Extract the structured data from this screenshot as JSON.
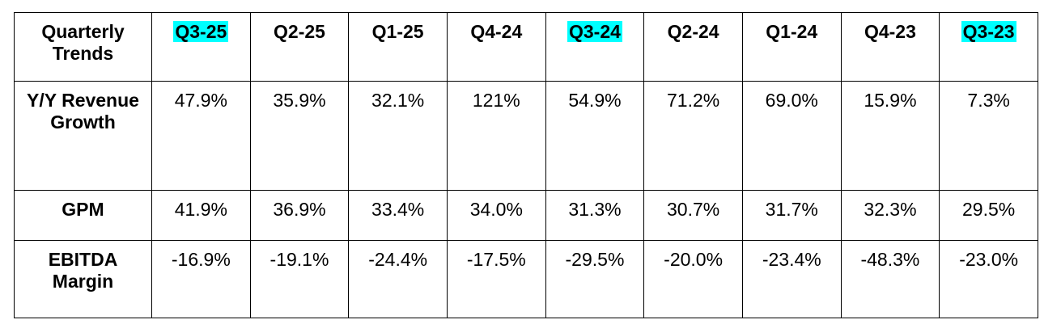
{
  "table": {
    "title": "Quarterly Trends",
    "columns": [
      "Q3-25",
      "Q2-25",
      "Q1-25",
      "Q4-24",
      "Q3-24",
      "Q2-24",
      "Q1-24",
      "Q4-23",
      "Q3-23"
    ],
    "rows": [
      {
        "label": "Y/Y Revenue Growth",
        "values": [
          "47.9%",
          "35.9%",
          "32.1%",
          "121%",
          "54.9%",
          "71.2%",
          "69.0%",
          "15.9%",
          "7.3%"
        ]
      },
      {
        "label": "GPM",
        "values": [
          "41.9%",
          "36.9%",
          "33.4%",
          "34.0%",
          "31.3%",
          "30.7%",
          "31.7%",
          "32.3%",
          "29.5%"
        ]
      },
      {
        "label": "EBITDA Margin",
        "values": [
          "-16.9%",
          "-19.1%",
          "-24.4%",
          "-17.5%",
          "-29.5%",
          "-20.0%",
          "-23.4%",
          "-48.3%",
          "-23.0%"
        ]
      }
    ]
  }
}
